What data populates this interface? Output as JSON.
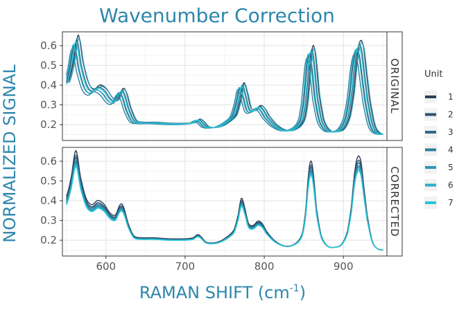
{
  "chart_data": {
    "type": "line",
    "title": "Wavenumber Correction",
    "xlabel_main": "RAMAN SHIFT (cm",
    "xlabel_sup": "-1",
    "xlabel_close": ")",
    "ylabel": "NORMALIZED SIGNAL",
    "xlim": [
      545,
      955
    ],
    "ylim": [
      0.12,
      0.67
    ],
    "x_ticks": [
      600,
      700,
      800,
      900
    ],
    "y_ticks": [
      0.2,
      0.3,
      0.4,
      0.5,
      0.6
    ],
    "grid": true,
    "legend_position": "right",
    "legend_title": "Unit",
    "units": [
      "1",
      "2",
      "3",
      "4",
      "5",
      "6",
      "7"
    ],
    "unit_colors": [
      "#2a3c57",
      "#2d5270",
      "#2f6a87",
      "#30809c",
      "#2f97b2",
      "#2cafc7",
      "#28c8d9"
    ],
    "panels": [
      {
        "label": "ORIGINAL",
        "shifts": [
          3,
          -2,
          1,
          -5,
          4,
          -3,
          0
        ],
        "scales": [
          1.05,
          0.94,
          1.0,
          0.9,
          1.02,
          0.95,
          0.98
        ]
      },
      {
        "label": "CORRECTED",
        "shifts": [
          0,
          0,
          0,
          0,
          0,
          0,
          0
        ],
        "scales": [
          1.05,
          1.0,
          0.97,
          0.94,
          0.92,
          0.9,
          0.88
        ]
      }
    ],
    "baseline_spectrum": {
      "x": [
        550,
        556,
        562,
        568,
        575,
        582,
        590,
        598,
        605,
        612,
        618,
        622,
        628,
        635,
        645,
        660,
        680,
        700,
        710,
        716,
        720,
        726,
        735,
        745,
        755,
        762,
        767,
        771,
        775,
        780,
        786,
        792,
        797,
        803,
        812,
        822,
        832,
        842,
        848,
        852,
        856,
        859,
        862,
        866,
        872,
        880,
        890,
        898,
        905,
        910,
        914,
        918,
        922,
        926,
        930,
        936,
        942,
        950
      ],
      "y": [
        0.41,
        0.5,
        0.63,
        0.5,
        0.4,
        0.37,
        0.39,
        0.37,
        0.33,
        0.32,
        0.37,
        0.36,
        0.28,
        0.22,
        0.21,
        0.21,
        0.205,
        0.205,
        0.21,
        0.225,
        0.215,
        0.19,
        0.185,
        0.195,
        0.22,
        0.25,
        0.32,
        0.4,
        0.36,
        0.28,
        0.27,
        0.29,
        0.28,
        0.24,
        0.2,
        0.175,
        0.17,
        0.19,
        0.23,
        0.33,
        0.52,
        0.58,
        0.52,
        0.35,
        0.22,
        0.17,
        0.165,
        0.18,
        0.24,
        0.36,
        0.52,
        0.6,
        0.58,
        0.45,
        0.32,
        0.2,
        0.16,
        0.15
      ]
    }
  }
}
